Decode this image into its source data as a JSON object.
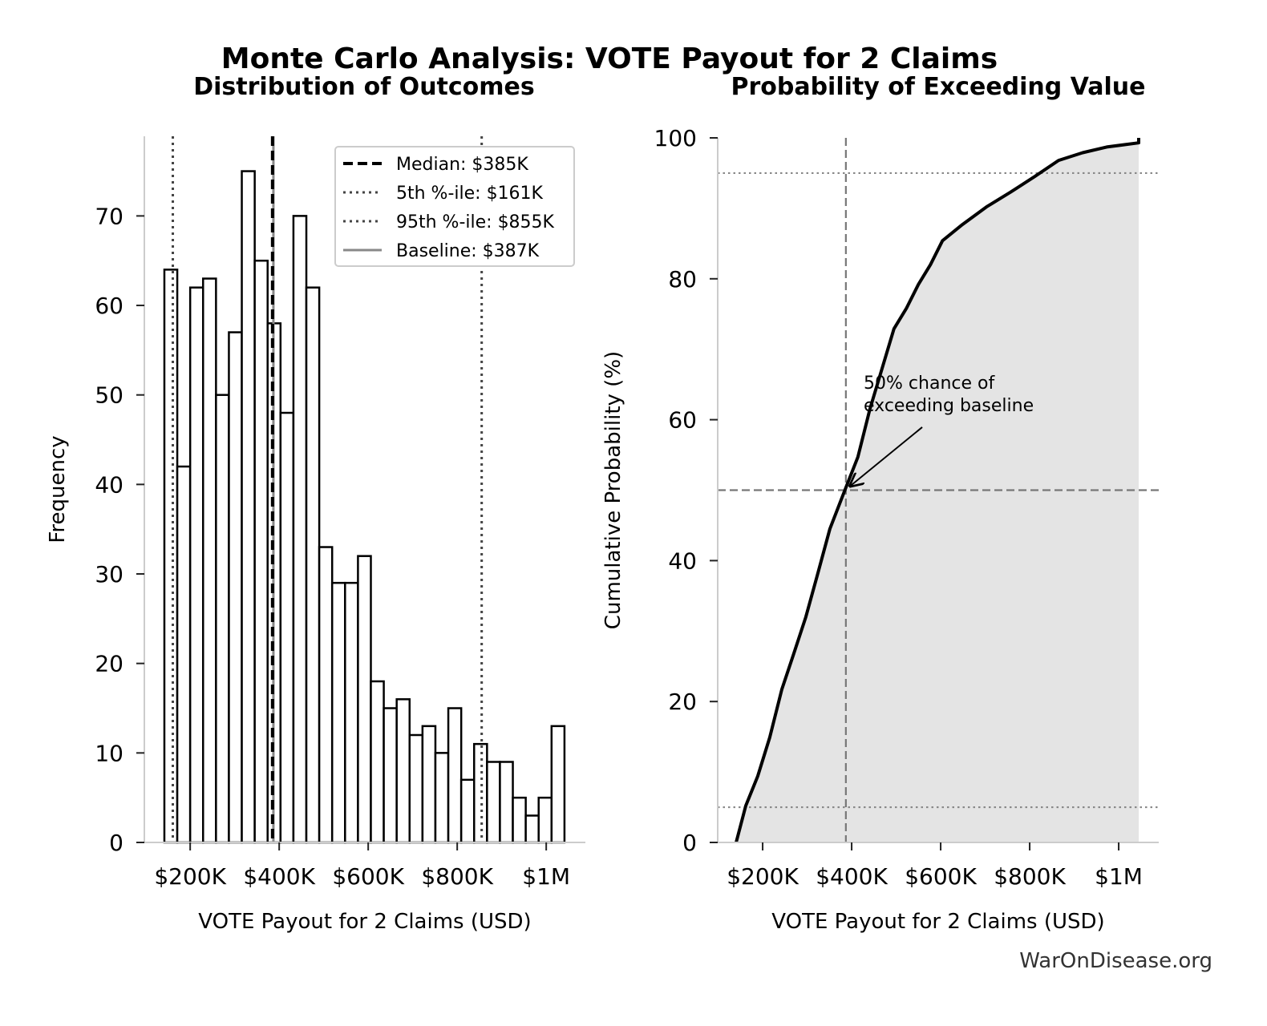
{
  "title": "Monte Carlo Analysis: VOTE Payout for 2 Claims",
  "source": "WarOnDisease.org",
  "chart_data": [
    {
      "type": "histogram",
      "title": "Distribution of Outcomes",
      "xlabel": "VOTE Payout for 2 Claims (USD)",
      "ylabel": "Frequency",
      "bins": [
        142000,
        171000,
        200000,
        229000,
        258000,
        287000,
        316000,
        345000,
        374000,
        403000,
        432000,
        461000,
        490000,
        519000,
        548000,
        577000,
        606000,
        635000,
        664000,
        693000,
        722000,
        751000,
        780000,
        809000,
        838000,
        867000,
        896000,
        925000,
        954000,
        983000,
        1012000,
        1041000
      ],
      "values": [
        64,
        42,
        62,
        63,
        50,
        57,
        75,
        65,
        58,
        48,
        70,
        62,
        33,
        29,
        29,
        32,
        18,
        15,
        16,
        12,
        13,
        10,
        15,
        7,
        11,
        9,
        9,
        5,
        3,
        5,
        13
      ],
      "color": "#ffffff",
      "edgecolor": "#000000",
      "xlim": [
        97000,
        1088000
      ],
      "xticks": [
        {
          "value": 200000,
          "label": "$200K"
        },
        {
          "value": 400000,
          "label": "$400K"
        },
        {
          "value": 600000,
          "label": "$600K"
        },
        {
          "value": 800000,
          "label": "$800K"
        },
        {
          "value": 1000000,
          "label": "$1M"
        }
      ],
      "ylim": [
        0,
        78.9
      ],
      "yticks": [
        0,
        10,
        20,
        30,
        40,
        50,
        60,
        70
      ],
      "reference_lines": [
        {
          "label": "Median: $385K",
          "value": 385000,
          "color": "#000000",
          "style": "dashed"
        },
        {
          "label": "5th %-ile: $161K",
          "value": 161000,
          "color": "#444444",
          "style": "dotted"
        },
        {
          "label": "95th %-ile: $855K",
          "value": 855000,
          "color": "#444444",
          "style": "dotted"
        },
        {
          "label": "Baseline: $387K",
          "value": 387000,
          "color": "#888888",
          "style": "solid"
        }
      ],
      "legend": "upper right"
    },
    {
      "type": "line",
      "title": "Probability of Exceeding Value",
      "xlabel": "VOTE Payout for 2 Claims (USD)",
      "ylabel": "Cumulative Probability (%)",
      "x": [
        140500,
        162000,
        189000,
        216000,
        243000,
        270000,
        297000,
        324000,
        351000,
        386000,
        414000,
        441000,
        468000,
        495000,
        523000,
        550000,
        577000,
        604000,
        649000,
        703000,
        757000,
        811000,
        865000,
        919000,
        973000,
        1045000,
        1045000
      ],
      "y": [
        0,
        5.2,
        9.4,
        14.9,
        21.7,
        26.8,
        32,
        38.2,
        44.5,
        50.2,
        54.7,
        61.5,
        67.2,
        72.9,
        75.8,
        79.2,
        82,
        85.4,
        87.7,
        90.2,
        92.3,
        94.5,
        96.8,
        97.9,
        98.7,
        99.3,
        100
      ],
      "color": "#000000",
      "fill": "#e4e4e4",
      "xlim": [
        99000,
        1090000
      ],
      "xticks": [
        {
          "value": 200000,
          "label": "$200K"
        },
        {
          "value": 400000,
          "label": "$400K"
        },
        {
          "value": 600000,
          "label": "$600K"
        },
        {
          "value": 800000,
          "label": "$800K"
        },
        {
          "value": 1000000,
          "label": "$1M"
        }
      ],
      "ylim": [
        0,
        100
      ],
      "yticks": [
        0,
        20,
        40,
        60,
        80,
        100
      ],
      "hlines": [
        {
          "value": 95,
          "style": "dotted"
        },
        {
          "value": 5,
          "style": "dotted"
        },
        {
          "value": 50,
          "style": "dashed"
        }
      ],
      "vlines": [
        {
          "value": 387000,
          "style": "dashed"
        }
      ],
      "annotation": {
        "lines": [
          "50% chance of",
          "exceeding baseline"
        ],
        "x": 427000,
        "y": 64.4,
        "xy": [
          387000,
          50
        ]
      }
    }
  ]
}
